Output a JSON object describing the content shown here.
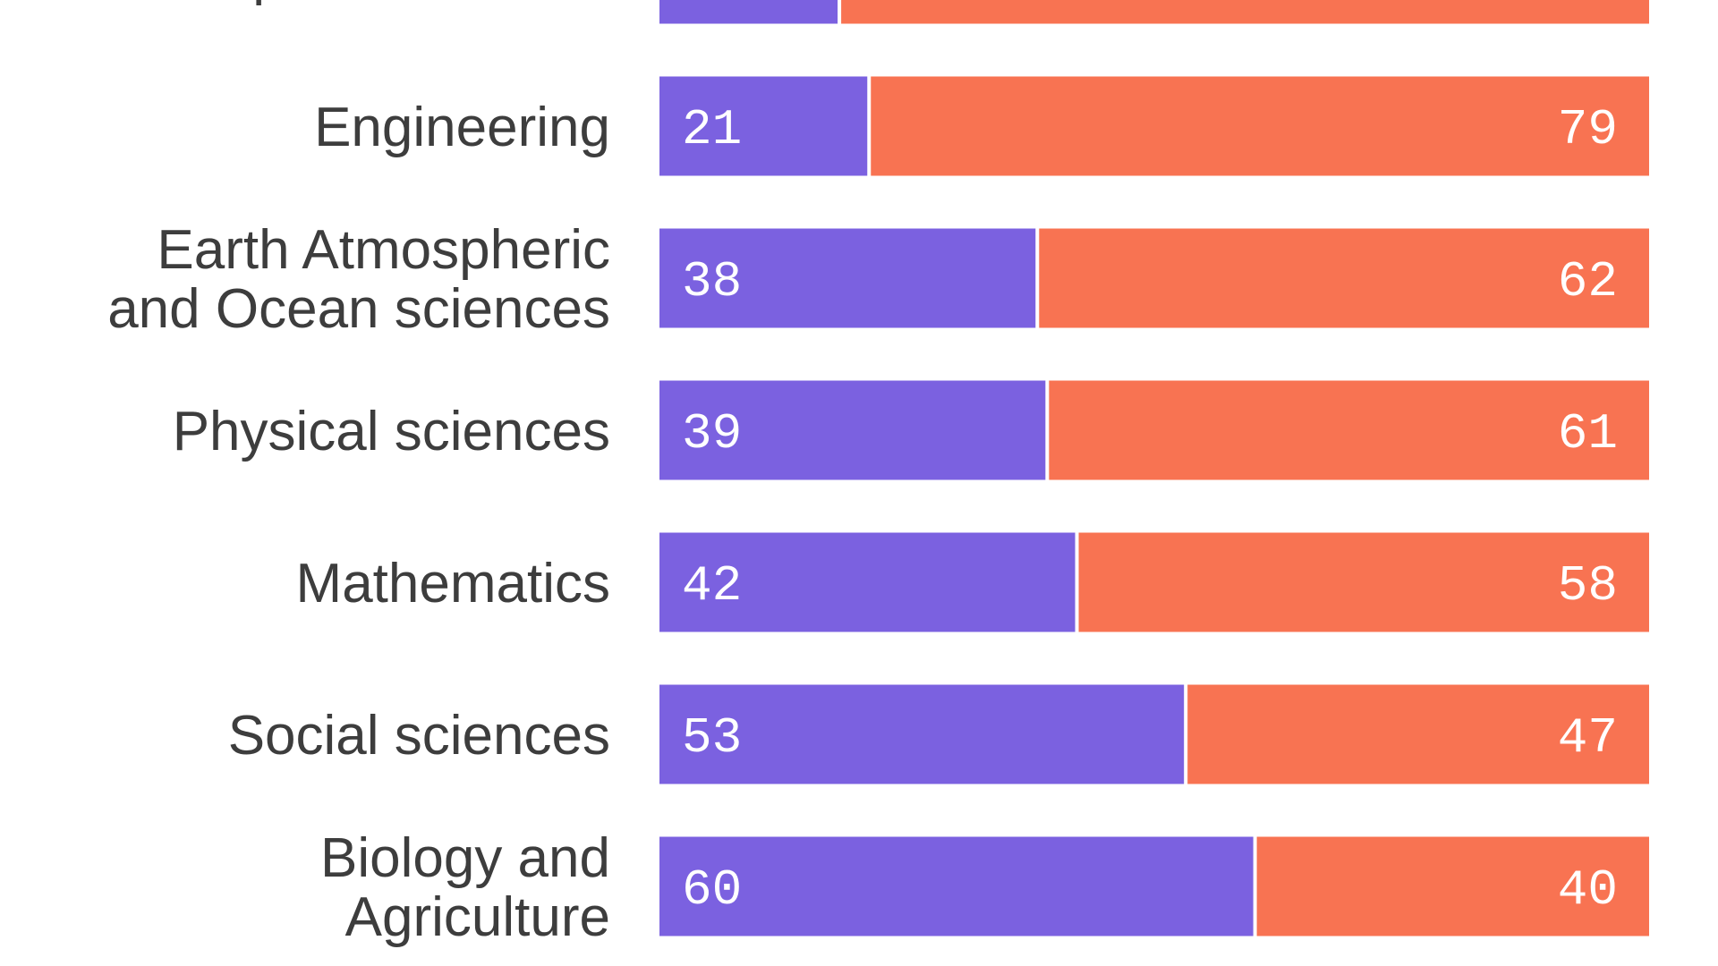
{
  "colors": {
    "women": "#7b61e0",
    "men": "#f87352",
    "label": "#3d3d3d",
    "value_text": "#ffffff"
  },
  "chart_data": {
    "type": "bar",
    "orientation": "horizontal",
    "stacked": true,
    "normalized_percent": true,
    "title": "",
    "xlabel": "",
    "ylabel": "",
    "xlim": [
      0,
      100
    ],
    "grid": false,
    "legend": "none",
    "categories": [
      [
        "Computer sciences"
      ],
      [
        "Engineering"
      ],
      [
        "Earth Atmospheric",
        "and Ocean sciences"
      ],
      [
        "Physical sciences"
      ],
      [
        "Mathematics"
      ],
      [
        "Social sciences"
      ],
      [
        "Biology and",
        "Agriculture"
      ]
    ],
    "series": [
      {
        "color": "#7b61e0",
        "values": [
          18,
          21,
          38,
          39,
          42,
          53,
          60
        ],
        "labels_visible": [
          false,
          true,
          true,
          true,
          true,
          true,
          true
        ]
      },
      {
        "color": "#f87352",
        "values": [
          82,
          79,
          62,
          61,
          58,
          47,
          40
        ],
        "labels_visible": [
          false,
          true,
          true,
          true,
          true,
          true,
          true
        ]
      }
    ]
  }
}
